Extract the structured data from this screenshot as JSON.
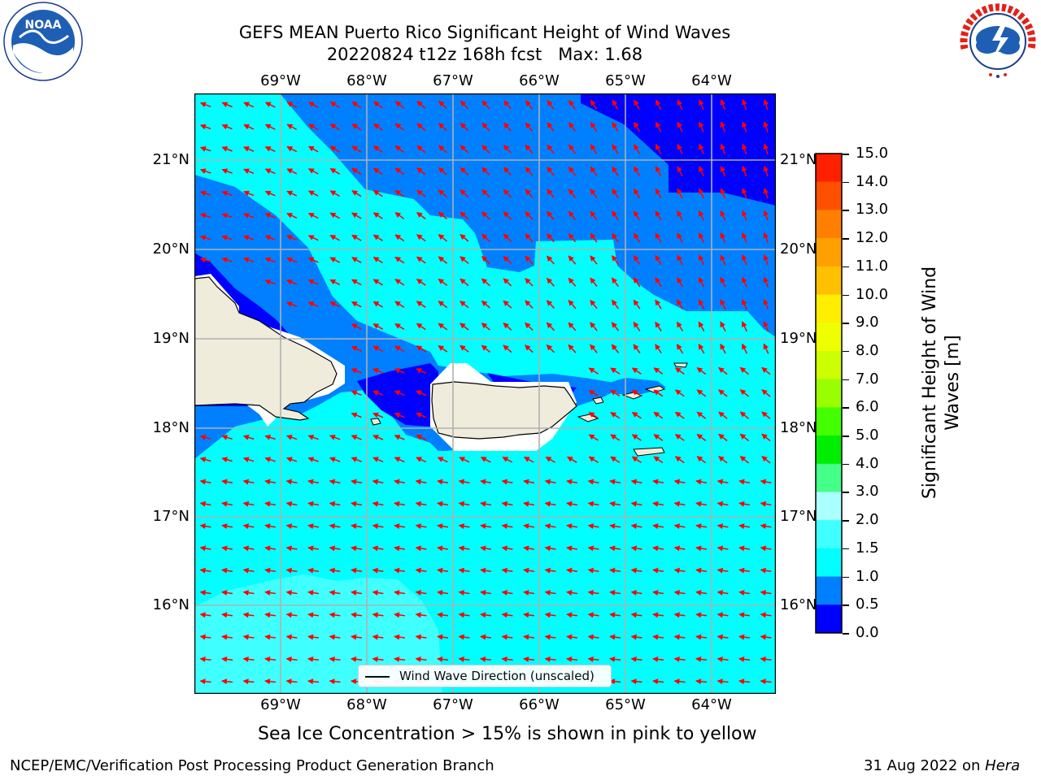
{
  "header": {
    "title_line1": "GEFS MEAN Puerto Rico Significant Height of Wind Waves",
    "title_line2": "20220824 t12z 168h fcst   Max: 1.68"
  },
  "logos": {
    "noaa_text": "NOAA",
    "noaa_ring": "NATIONAL OCEANIC AND ATMOSPHERIC ADMINISTRATION · U.S. DEPARTMENT OF COMMERCE",
    "nws_ring": "NATIONAL WEATHER SERVICE"
  },
  "map": {
    "lon_labels": [
      "69°W",
      "68°W",
      "67°W",
      "66°W",
      "65°W",
      "64°W"
    ],
    "lat_labels": [
      "21°N",
      "20°N",
      "19°N",
      "18°N",
      "17°N",
      "16°N"
    ],
    "lon_range": [
      -70.0,
      -63.25
    ],
    "lat_range": [
      15.0,
      21.75
    ],
    "colors": {
      "0.0-0.5": "#0000ff",
      "0.5-1.0": "#0080ff",
      "1.0-1.5": "#00ffff",
      "1.5-2.0": "#40ffff",
      "land": "#efecdc",
      "arrows": "#ff0000",
      "grid": "#b0b0b0"
    },
    "legend_label": "Wind Wave Direction (unscaled)"
  },
  "colorbar": {
    "levels": [
      "15.0",
      "14.0",
      "13.0",
      "12.0",
      "11.0",
      "10.0",
      "9.0",
      "8.0",
      "7.0",
      "6.0",
      "5.0",
      "4.0",
      "3.0",
      "2.0",
      "1.5",
      "1.0",
      "0.5",
      "0.0"
    ],
    "colors": [
      "#ff0000",
      "#ff2000",
      "#ff5000",
      "#ff8000",
      "#ffa000",
      "#ffc000",
      "#ffee00",
      "#eeff00",
      "#ccff00",
      "#99ff00",
      "#44ff00",
      "#00ee00",
      "#44ff88",
      "#00ffaa",
      "#aaffff",
      "#40ffff",
      "#00ffff",
      "#0080ff",
      "#0000ff"
    ],
    "label": "Significant Height of Wind Waves [m]"
  },
  "note": "Sea Ice Concentration > 15% is shown in pink to yellow",
  "footer": {
    "left": "NCEP/EMC/Verification Post Processing Product Generation Branch",
    "right_prefix": "31 Aug 2022 on ",
    "right_italic": "Hera"
  }
}
